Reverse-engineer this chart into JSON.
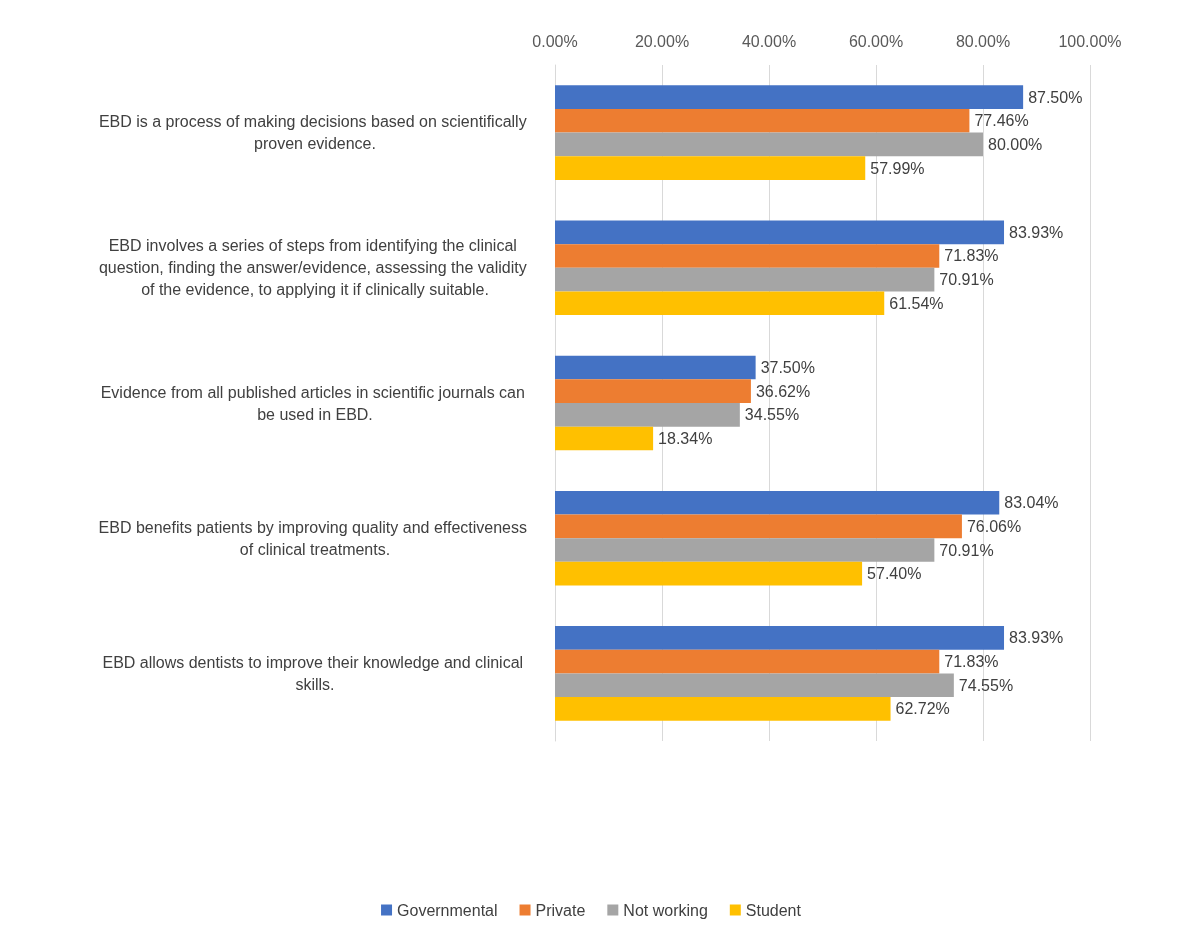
{
  "chart_data": {
    "type": "bar",
    "orientation": "horizontal",
    "categories": [
      "EBD is a process of making decisions based on scientifically proven evidence.",
      "EBD involves a series of steps from identifying the clinical question, finding the answer/evidence, assessing the validity of the evidence, to applying it if clinically suitable.",
      "Evidence from all published articles in scientific journals can be used in EBD.",
      "EBD benefits patients by improving quality and effectiveness of clinical treatments.",
      "EBD allows dentists to improve their knowledge and clinical skills."
    ],
    "series": [
      {
        "name": "Governmental",
        "color": "#4472c4",
        "values": [
          87.5,
          83.93,
          37.5,
          83.04,
          83.93
        ],
        "value_labels": [
          "87.50%",
          "83.93%",
          "37.50%",
          "83.04%",
          "83.93%"
        ]
      },
      {
        "name": "Private",
        "color": "#ed7d31",
        "values": [
          77.46,
          71.83,
          36.62,
          76.06,
          71.83
        ],
        "value_labels": [
          "77.46%",
          "71.83%",
          "36.62%",
          "76.06%",
          "71.83%"
        ]
      },
      {
        "name": "Not working",
        "color": "#a5a5a5",
        "values": [
          80.0,
          70.91,
          34.55,
          70.91,
          74.55
        ],
        "value_labels": [
          "80.00%",
          "70.91%",
          "34.55%",
          "70.91%",
          "74.55%"
        ]
      },
      {
        "name": "Student",
        "color": "#ffc000",
        "values": [
          57.99,
          61.54,
          18.34,
          57.4,
          62.72
        ],
        "value_labels": [
          "57.99%",
          "61.54%",
          "18.34%",
          "57.40%",
          "62.72%"
        ]
      }
    ],
    "xlim": [
      0,
      100
    ],
    "xticks": [
      {
        "value": 0,
        "label": "0.00%"
      },
      {
        "value": 20,
        "label": "20.00%"
      },
      {
        "value": 40,
        "label": "40.00%"
      },
      {
        "value": 60,
        "label": "60.00%"
      },
      {
        "value": 80,
        "label": "80.00%"
      },
      {
        "value": 100,
        "label": "100.00%"
      }
    ],
    "grid": "x",
    "legend": "bottom"
  }
}
